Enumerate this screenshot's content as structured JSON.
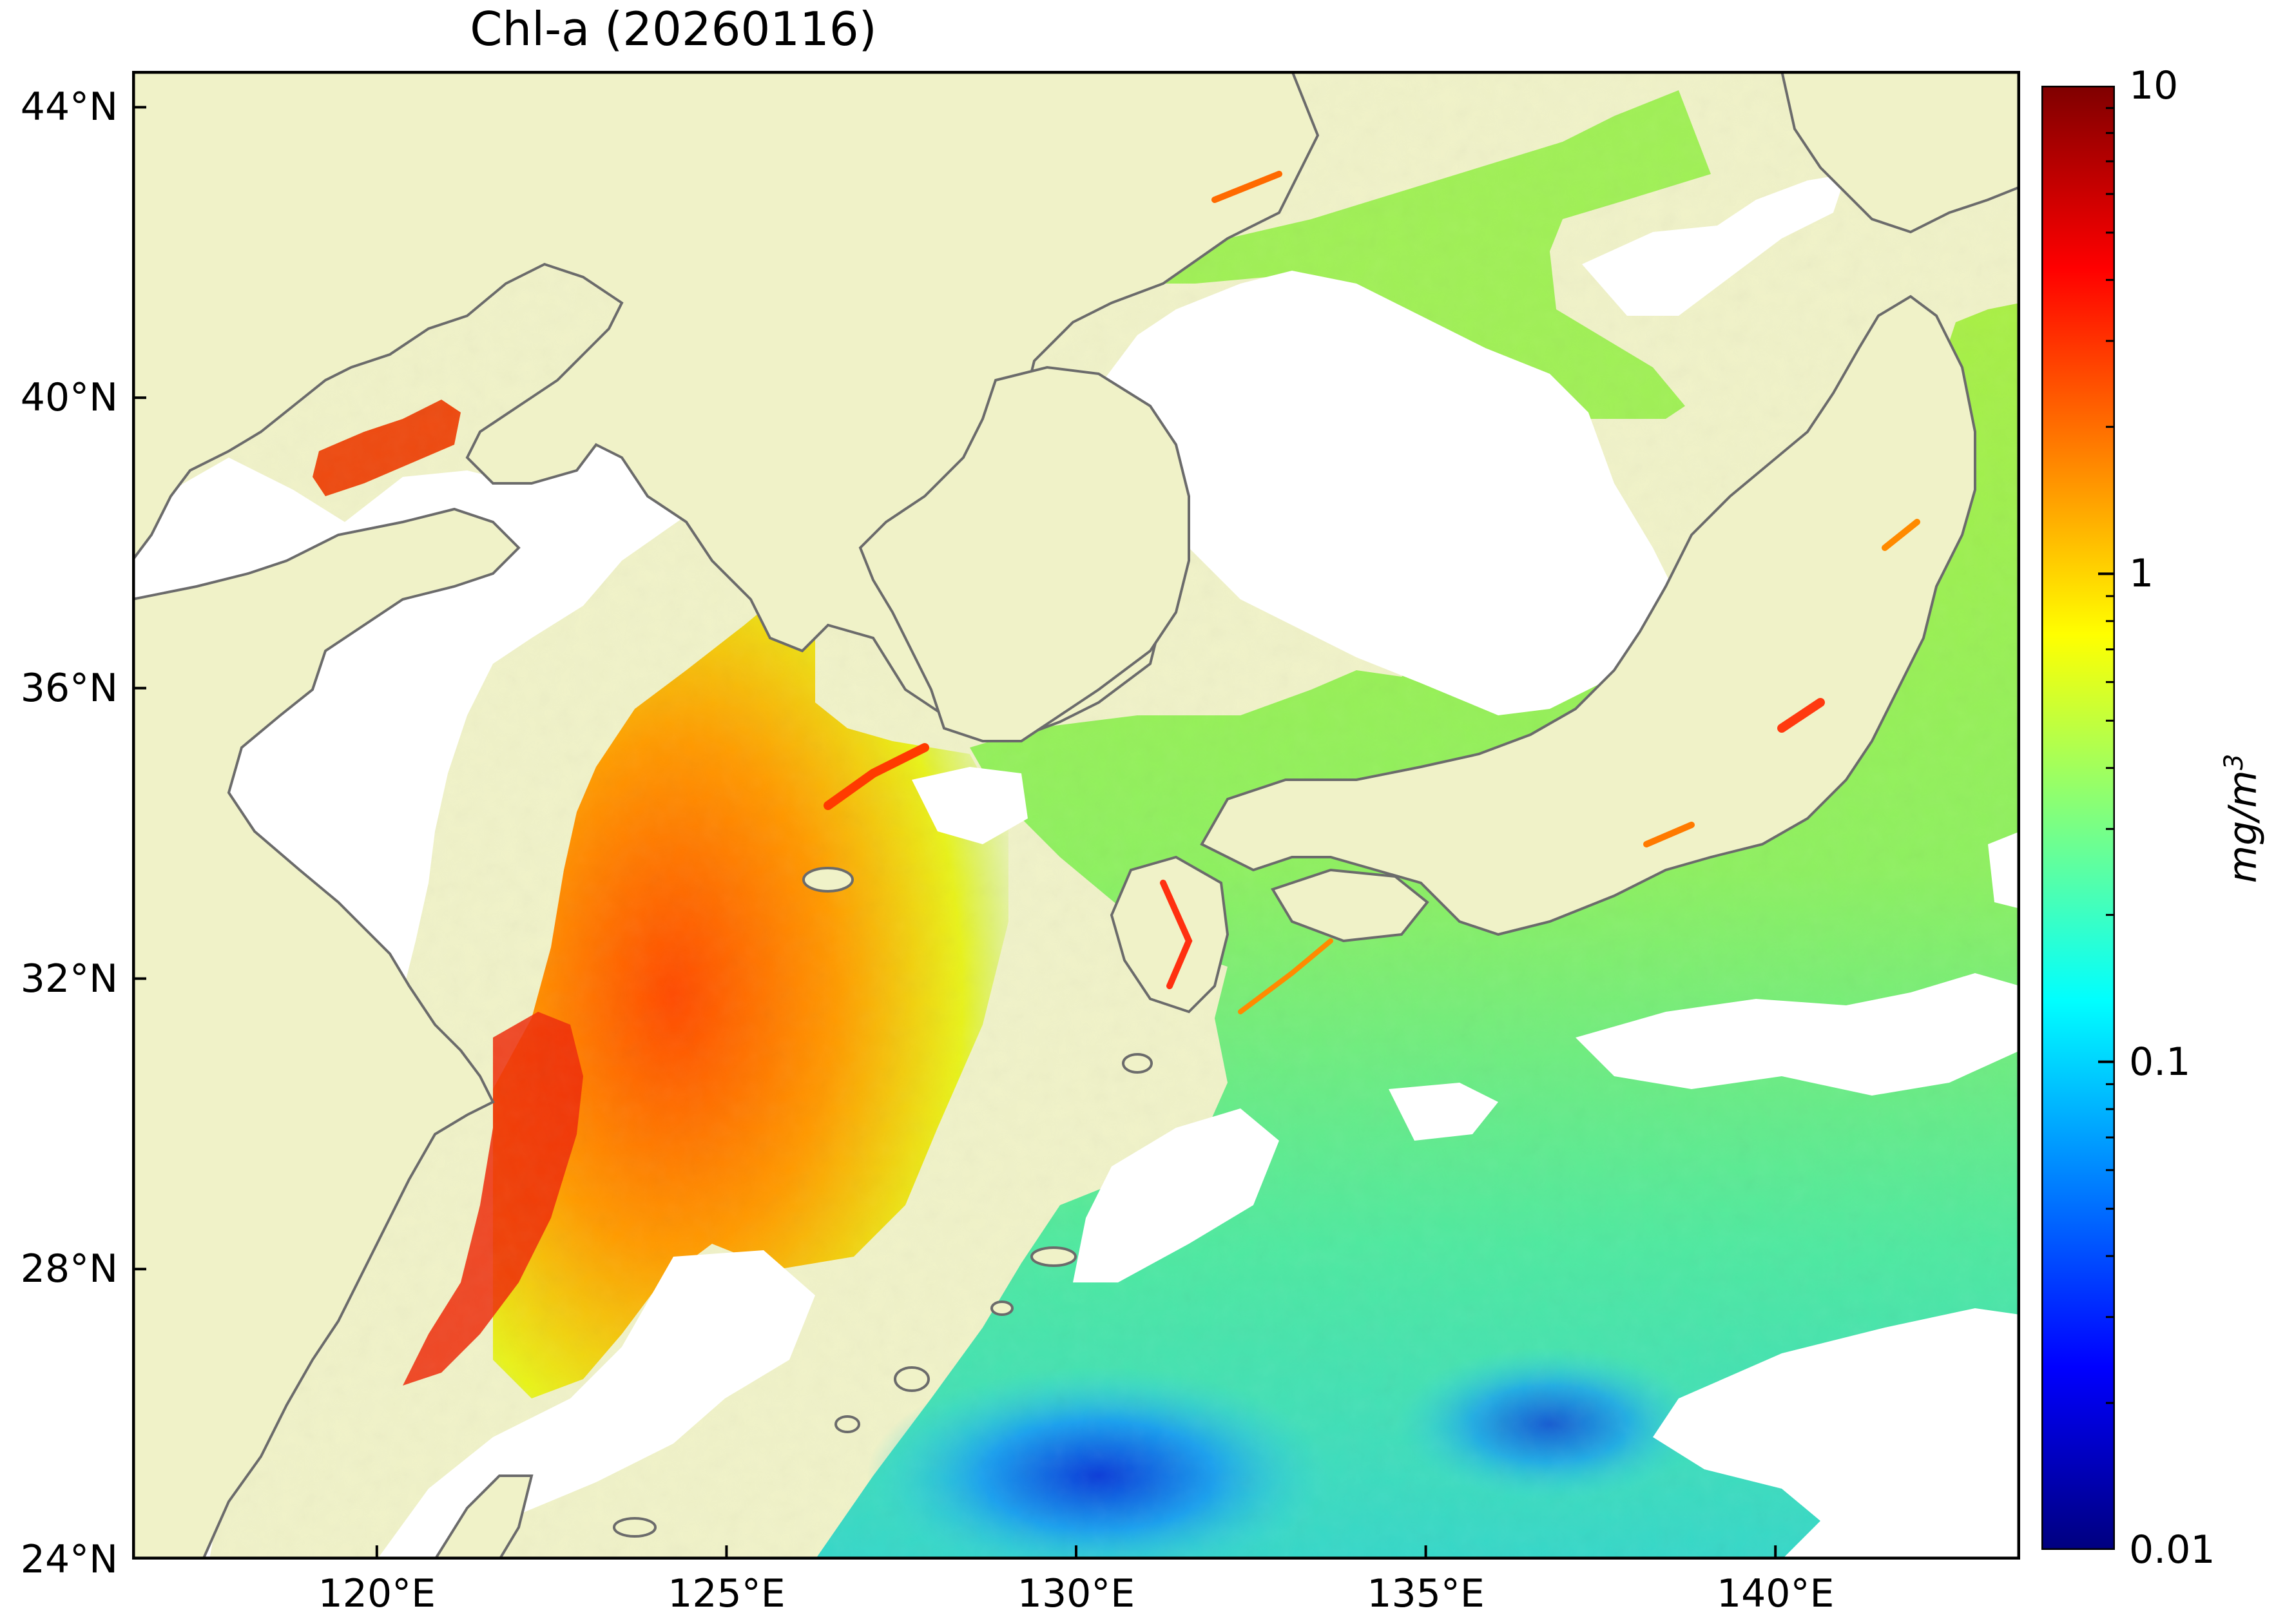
{
  "title": "Chl-a (20260116)",
  "map": {
    "lon_range": [
      116.5,
      143.5
    ],
    "lat_range": [
      24,
      44.5
    ],
    "lon_ticks": [
      {
        "value": 120,
        "label": "120°E"
      },
      {
        "value": 125,
        "label": "125°E"
      },
      {
        "value": 130,
        "label": "130°E"
      },
      {
        "value": 135,
        "label": "135°E"
      },
      {
        "value": 140,
        "label": "140°E"
      }
    ],
    "lat_ticks": [
      {
        "value": 24,
        "label": "24°N"
      },
      {
        "value": 28,
        "label": "28°N"
      },
      {
        "value": 32,
        "label": "32°N"
      },
      {
        "value": 36,
        "label": "36°N"
      },
      {
        "value": 40,
        "label": "40°N"
      },
      {
        "value": 44,
        "label": "44°N"
      }
    ],
    "colors": {
      "land": "#f0f2c8",
      "coast": "#6b6b6b",
      "no_data": "#ffffff",
      "frame": "#000000"
    }
  },
  "colorbar": {
    "scale": "log",
    "min": 0.01,
    "max": 10,
    "ticks": [
      {
        "value": 10,
        "label": "10"
      },
      {
        "value": 1,
        "label": "1"
      },
      {
        "value": 0.1,
        "label": "0.1"
      },
      {
        "value": 0.01,
        "label": "0.01"
      }
    ],
    "unit_label": "mg/m",
    "unit_superscript": "3",
    "colormap": [
      "#00007f",
      "#0000ff",
      "#007fff",
      "#00ffff",
      "#7fff7f",
      "#ffff00",
      "#ff7f00",
      "#ff0000",
      "#7f0000"
    ]
  }
}
